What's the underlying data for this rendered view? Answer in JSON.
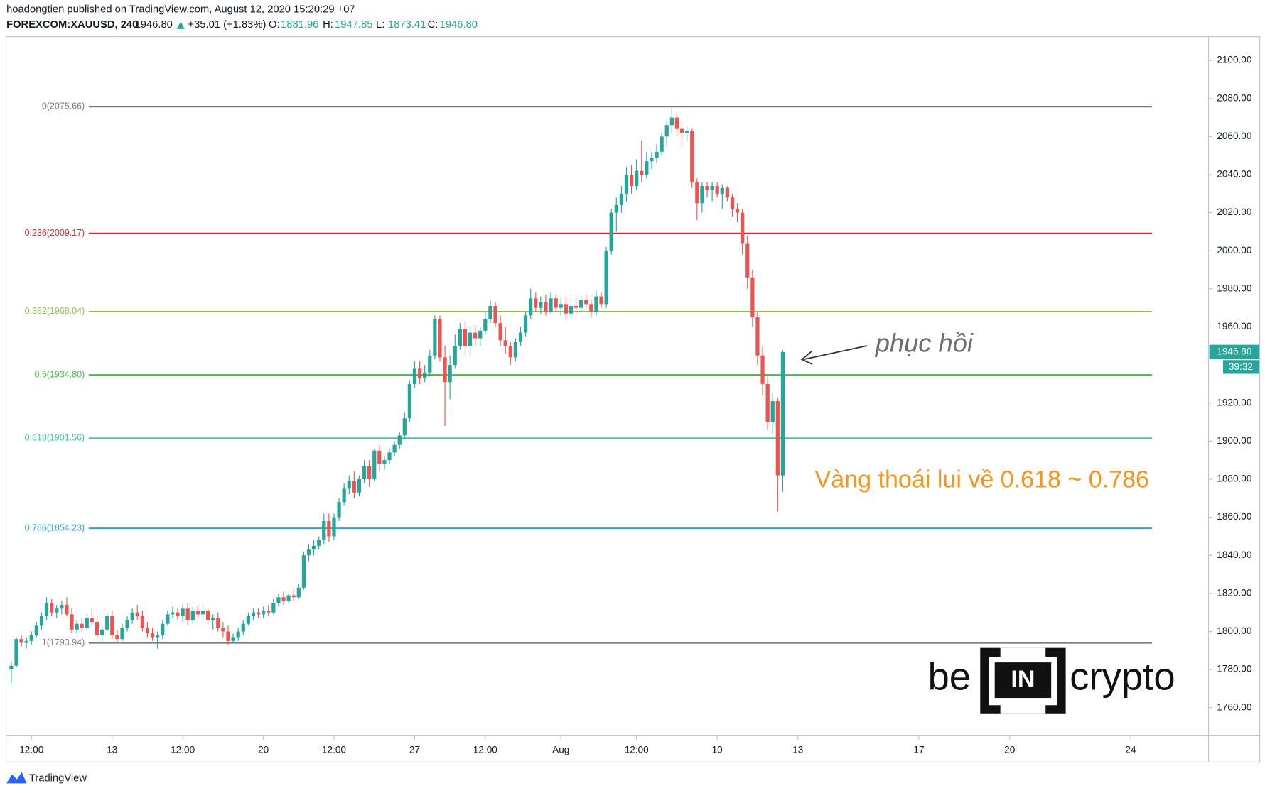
{
  "header": {
    "publisher": "hoadongtien published on TradingView.com, August 12, 2020 15:20:29 +07",
    "symbol": "FOREXCOM:XAUUSD, 240",
    "price": "1946.80",
    "change": "+35.01 (+1.83%)",
    "ohlc": [
      {
        "label": "O:",
        "value": "1881.96"
      },
      {
        "label": "H:",
        "value": "1947.85"
      },
      {
        "label": "L:",
        "value": "1873.41"
      },
      {
        "label": "C:",
        "value": "1946.80"
      }
    ]
  },
  "chart_data": {
    "type": "candlestick",
    "up_color": "#26a69a",
    "down_color": "#ef5350",
    "categories": [
      null,
      null,
      null,
      null,
      "12:00",
      null,
      null,
      null,
      null,
      null,
      null,
      null,
      null,
      null,
      null,
      null,
      null,
      null,
      null,
      null,
      "13",
      null,
      null,
      null,
      null,
      null,
      null,
      null,
      null,
      null,
      null,
      null,
      null,
      null,
      "12:00",
      null,
      null,
      null,
      null,
      null,
      null,
      null,
      null,
      null,
      null,
      null,
      null,
      null,
      null,
      null,
      "20",
      null,
      null,
      null,
      null,
      null,
      null,
      null,
      null,
      null,
      null,
      null,
      null,
      null,
      "12:00",
      null,
      null,
      null,
      null,
      null,
      null,
      null,
      null,
      null,
      null,
      null,
      null,
      null,
      null,
      null,
      "27",
      null,
      null,
      null,
      null,
      null,
      null,
      null,
      null,
      null,
      null,
      null,
      null,
      null,
      "12:00",
      null,
      null,
      null,
      null,
      null,
      null,
      null,
      null,
      null,
      null,
      null,
      null,
      null,
      null,
      "Aug",
      null,
      null,
      null,
      null,
      null,
      null,
      null,
      null,
      null,
      null,
      null,
      null,
      null,
      null,
      "12:00",
      null,
      null,
      null,
      null,
      null,
      null,
      null,
      null,
      null,
      null,
      null,
      null,
      null,
      null,
      null,
      "10",
      null,
      null,
      null,
      null,
      null,
      null,
      null,
      null,
      null,
      null,
      null,
      null,
      null,
      null,
      null,
      "13",
      null,
      null,
      null,
      null,
      null,
      null,
      null,
      null,
      null,
      null,
      null,
      null,
      null,
      null,
      null,
      null,
      null,
      null,
      null,
      null,
      null,
      null,
      null,
      "17",
      null,
      null,
      null,
      null,
      null,
      null,
      null,
      null,
      null,
      null,
      null,
      null,
      null,
      null,
      null,
      null,
      null,
      "20",
      null,
      null,
      null,
      null,
      null,
      null,
      null,
      null,
      null,
      null,
      null,
      null,
      null,
      null,
      null,
      null,
      null,
      null,
      null,
      null,
      null,
      null,
      null,
      "24"
    ],
    "values": [
      [
        1780,
        1784,
        1773,
        1782
      ],
      [
        1782,
        1797,
        1781,
        1796
      ],
      [
        1796,
        1798,
        1792,
        1794
      ],
      [
        1794,
        1797,
        1791,
        1795
      ],
      [
        1795,
        1800,
        1793,
        1798
      ],
      [
        1798,
        1805,
        1797,
        1803
      ],
      [
        1803,
        1810,
        1801,
        1808
      ],
      [
        1808,
        1818,
        1806,
        1815
      ],
      [
        1815,
        1817,
        1808,
        1810
      ],
      [
        1810,
        1814,
        1807,
        1812
      ],
      [
        1812,
        1816,
        1809,
        1814
      ],
      [
        1814,
        1818,
        1808,
        1809
      ],
      [
        1809,
        1812,
        1799,
        1801
      ],
      [
        1801,
        1806,
        1799,
        1804
      ],
      [
        1804,
        1807,
        1800,
        1802
      ],
      [
        1802,
        1809,
        1801,
        1807
      ],
      [
        1807,
        1812,
        1803,
        1805
      ],
      [
        1805,
        1808,
        1796,
        1798
      ],
      [
        1798,
        1803,
        1794,
        1801
      ],
      [
        1801,
        1810,
        1800,
        1808
      ],
      [
        1808,
        1811,
        1796,
        1798
      ],
      [
        1798,
        1801,
        1794,
        1796
      ],
      [
        1796,
        1804,
        1795,
        1802
      ],
      [
        1802,
        1808,
        1800,
        1806
      ],
      [
        1806,
        1812,
        1804,
        1810
      ],
      [
        1810,
        1814,
        1806,
        1808
      ],
      [
        1808,
        1811,
        1800,
        1802
      ],
      [
        1802,
        1805,
        1797,
        1799
      ],
      [
        1799,
        1802,
        1795,
        1797
      ],
      [
        1797,
        1800,
        1791,
        1798
      ],
      [
        1798,
        1806,
        1796,
        1804
      ],
      [
        1804,
        1811,
        1803,
        1809
      ],
      [
        1809,
        1813,
        1807,
        1810
      ],
      [
        1810,
        1812,
        1806,
        1808
      ],
      [
        1808,
        1814,
        1805,
        1812
      ],
      [
        1812,
        1815,
        1803,
        1806
      ],
      [
        1806,
        1813,
        1804,
        1811
      ],
      [
        1811,
        1814,
        1807,
        1809
      ],
      [
        1809,
        1813,
        1806,
        1811
      ],
      [
        1811,
        1812,
        1804,
        1806
      ],
      [
        1806,
        1809,
        1801,
        1807
      ],
      [
        1807,
        1810,
        1800,
        1802
      ],
      [
        1802,
        1805,
        1797,
        1800
      ],
      [
        1800,
        1803,
        1793,
        1795
      ],
      [
        1795,
        1799,
        1794,
        1797
      ],
      [
        1797,
        1802,
        1795,
        1800
      ],
      [
        1800,
        1806,
        1798,
        1804
      ],
      [
        1804,
        1810,
        1803,
        1808
      ],
      [
        1808,
        1812,
        1806,
        1810
      ],
      [
        1810,
        1812,
        1807,
        1809
      ],
      [
        1809,
        1813,
        1807,
        1811
      ],
      [
        1811,
        1814,
        1808,
        1810
      ],
      [
        1810,
        1817,
        1809,
        1815
      ],
      [
        1815,
        1820,
        1813,
        1818
      ],
      [
        1818,
        1821,
        1814,
        1816
      ],
      [
        1816,
        1820,
        1815,
        1819
      ],
      [
        1819,
        1822,
        1816,
        1818
      ],
      [
        1818,
        1825,
        1817,
        1823
      ],
      [
        1823,
        1842,
        1822,
        1840
      ],
      [
        1840,
        1846,
        1837,
        1843
      ],
      [
        1843,
        1848,
        1840,
        1845
      ],
      [
        1845,
        1850,
        1843,
        1848
      ],
      [
        1848,
        1862,
        1846,
        1858
      ],
      [
        1858,
        1862,
        1847,
        1850
      ],
      [
        1850,
        1862,
        1848,
        1860
      ],
      [
        1860,
        1870,
        1858,
        1868
      ],
      [
        1868,
        1878,
        1866,
        1875
      ],
      [
        1875,
        1882,
        1872,
        1879
      ],
      [
        1879,
        1884,
        1870,
        1873
      ],
      [
        1873,
        1882,
        1871,
        1880
      ],
      [
        1880,
        1890,
        1878,
        1887
      ],
      [
        1887,
        1890,
        1876,
        1880
      ],
      [
        1880,
        1896,
        1879,
        1895
      ],
      [
        1895,
        1898,
        1884,
        1888
      ],
      [
        1888,
        1892,
        1885,
        1890
      ],
      [
        1890,
        1896,
        1888,
        1894
      ],
      [
        1894,
        1900,
        1892,
        1898
      ],
      [
        1898,
        1905,
        1896,
        1903
      ],
      [
        1903,
        1915,
        1901,
        1912
      ],
      [
        1912,
        1932,
        1910,
        1930
      ],
      [
        1930,
        1942,
        1928,
        1938
      ],
      [
        1938,
        1942,
        1930,
        1933
      ],
      [
        1933,
        1940,
        1931,
        1936
      ],
      [
        1936,
        1948,
        1934,
        1945
      ],
      [
        1945,
        1966,
        1943,
        1964
      ],
      [
        1964,
        1966,
        1942,
        1944
      ],
      [
        1944,
        1950,
        1908,
        1931
      ],
      [
        1931,
        1945,
        1922,
        1940
      ],
      [
        1940,
        1956,
        1938,
        1950
      ],
      [
        1950,
        1962,
        1948,
        1959
      ],
      [
        1959,
        1963,
        1946,
        1950
      ],
      [
        1950,
        1960,
        1945,
        1957
      ],
      [
        1957,
        1961,
        1950,
        1954
      ],
      [
        1954,
        1960,
        1950,
        1958
      ],
      [
        1958,
        1968,
        1956,
        1964
      ],
      [
        1964,
        1974,
        1962,
        1971
      ],
      [
        1971,
        1973,
        1960,
        1962
      ],
      [
        1962,
        1966,
        1950,
        1953
      ],
      [
        1953,
        1960,
        1946,
        1950
      ],
      [
        1950,
        1952,
        1940,
        1944
      ],
      [
        1944,
        1954,
        1942,
        1952
      ],
      [
        1952,
        1960,
        1950,
        1957
      ],
      [
        1957,
        1968,
        1955,
        1966
      ],
      [
        1966,
        1980,
        1964,
        1975
      ],
      [
        1975,
        1978,
        1968,
        1970
      ],
      [
        1970,
        1976,
        1967,
        1973
      ],
      [
        1973,
        1977,
        1966,
        1968
      ],
      [
        1968,
        1978,
        1967,
        1975
      ],
      [
        1975,
        1977,
        1968,
        1970
      ],
      [
        1970,
        1975,
        1966,
        1972
      ],
      [
        1972,
        1976,
        1964,
        1967
      ],
      [
        1967,
        1974,
        1965,
        1971
      ],
      [
        1971,
        1975,
        1967,
        1970
      ],
      [
        1970,
        1976,
        1968,
        1974
      ],
      [
        1974,
        1977,
        1970,
        1972
      ],
      [
        1972,
        1974,
        1965,
        1968
      ],
      [
        1968,
        1979,
        1966,
        1976
      ],
      [
        1976,
        1978,
        1970,
        1972
      ],
      [
        1972,
        2002,
        1970,
        2000
      ],
      [
        2000,
        2022,
        1998,
        2020
      ],
      [
        2020,
        2028,
        2010,
        2024
      ],
      [
        2024,
        2034,
        2020,
        2030
      ],
      [
        2030,
        2044,
        2026,
        2040
      ],
      [
        2040,
        2045,
        2030,
        2034
      ],
      [
        2034,
        2048,
        2032,
        2042
      ],
      [
        2042,
        2058,
        2036,
        2040
      ],
      [
        2040,
        2052,
        2038,
        2047
      ],
      [
        2047,
        2052,
        2043,
        2049
      ],
      [
        2049,
        2056,
        2046,
        2052
      ],
      [
        2052,
        2062,
        2050,
        2060
      ],
      [
        2060,
        2068,
        2055,
        2066
      ],
      [
        2066,
        2075,
        2062,
        2070
      ],
      [
        2070,
        2072,
        2060,
        2064
      ],
      [
        2064,
        2068,
        2054,
        2062
      ],
      [
        2062,
        2066,
        2058,
        2063
      ],
      [
        2063,
        2064,
        2033,
        2036
      ],
      [
        2036,
        2038,
        2016,
        2025
      ],
      [
        2025,
        2036,
        2020,
        2034
      ],
      [
        2034,
        2036,
        2028,
        2032
      ],
      [
        2032,
        2036,
        2026,
        2034
      ],
      [
        2034,
        2036,
        2028,
        2030
      ],
      [
        2030,
        2035,
        2022,
        2033
      ],
      [
        2033,
        2034,
        2026,
        2028
      ],
      [
        2028,
        2030,
        2018,
        2022
      ],
      [
        2022,
        2025,
        2015,
        2020
      ],
      [
        2020,
        2022,
        1998,
        2004
      ],
      [
        2004,
        2008,
        1980,
        1986
      ],
      [
        1986,
        1990,
        1960,
        1965
      ],
      [
        1965,
        1968,
        1940,
        1945
      ],
      [
        1945,
        1950,
        1924,
        1930
      ],
      [
        1930,
        1934,
        1906,
        1910
      ],
      [
        1910,
        1925,
        1904,
        1921
      ],
      [
        1921,
        1923,
        1863,
        1882
      ],
      [
        1881.96,
        1947.85,
        1873.41,
        1946.8
      ],
      null,
      null,
      null,
      null,
      null,
      null,
      null,
      null,
      null,
      null,
      null,
      null,
      null,
      null,
      null,
      null,
      null,
      null,
      null,
      null,
      null,
      null,
      null,
      null,
      null,
      null,
      null,
      null,
      null,
      null,
      null,
      null,
      null,
      null,
      null,
      null,
      null,
      null,
      null,
      null,
      null,
      null,
      null,
      null,
      null,
      null,
      null,
      null,
      null,
      null,
      null,
      null,
      null,
      null,
      null,
      null,
      null,
      null,
      null,
      null,
      null,
      null,
      null,
      null,
      null,
      null,
      null,
      null,
      null
    ],
    "ylim": [
      1745.2,
      2112.7
    ],
    "yticks": [
      {
        "value": 1760,
        "label": "1760.00"
      },
      {
        "value": 1780,
        "label": "1780.00"
      },
      {
        "value": 1800,
        "label": "1800.00"
      },
      {
        "value": 1820,
        "label": "1820.00"
      },
      {
        "value": 1840,
        "label": "1840.00"
      },
      {
        "value": 1860,
        "label": "1860.00"
      },
      {
        "value": 1880,
        "label": "1880.00"
      },
      {
        "value": 1900,
        "label": "1900.00"
      },
      {
        "value": 1920,
        "label": "1920.00"
      },
      {
        "value": 1960,
        "label": "1960.00"
      },
      {
        "value": 1980,
        "label": "1980.00"
      },
      {
        "value": 2000,
        "label": "2000.00"
      },
      {
        "value": 2020,
        "label": "2020.00"
      },
      {
        "value": 2040,
        "label": "2040.00"
      },
      {
        "value": 2060,
        "label": "2060.00"
      },
      {
        "value": 2080,
        "label": "2080.00"
      },
      {
        "value": 2100,
        "label": "2100.00"
      }
    ],
    "fib_levels": [
      {
        "value": 2075.66,
        "label": "0(2075.66)",
        "color": "#787b86"
      },
      {
        "value": 2009.17,
        "label": "0.236(2009.17)",
        "color": "#e0262b"
      },
      {
        "value": 1968.04,
        "label": "0.382(1968.04)",
        "color": "#8bc34a"
      },
      {
        "value": 1934.8,
        "label": "0.5(1934.80)",
        "color": "#3fbf3f"
      },
      {
        "value": 1901.56,
        "label": "0.618(1901.56)",
        "color": "#3dc9a0"
      },
      {
        "value": 1854.23,
        "label": "0.786(1854.23)",
        "color": "#2a9fd6"
      },
      {
        "value": 1793.94,
        "label": "1(1793.94)",
        "color": "#787b86"
      }
    ],
    "last_price": {
      "value": 1946.8,
      "label": "1946.80"
    },
    "countdown": "39:32",
    "annotations": [
      {
        "text": "phục hồi",
        "color": "#6e6e6e"
      },
      {
        "text": "Vàng thoái lui về 0.618 ~ 0.786",
        "color": "#f7931a"
      }
    ]
  },
  "logo": {
    "parts": [
      "be",
      "IN",
      "crypto"
    ]
  },
  "footer": {
    "brand": "TradingView"
  }
}
